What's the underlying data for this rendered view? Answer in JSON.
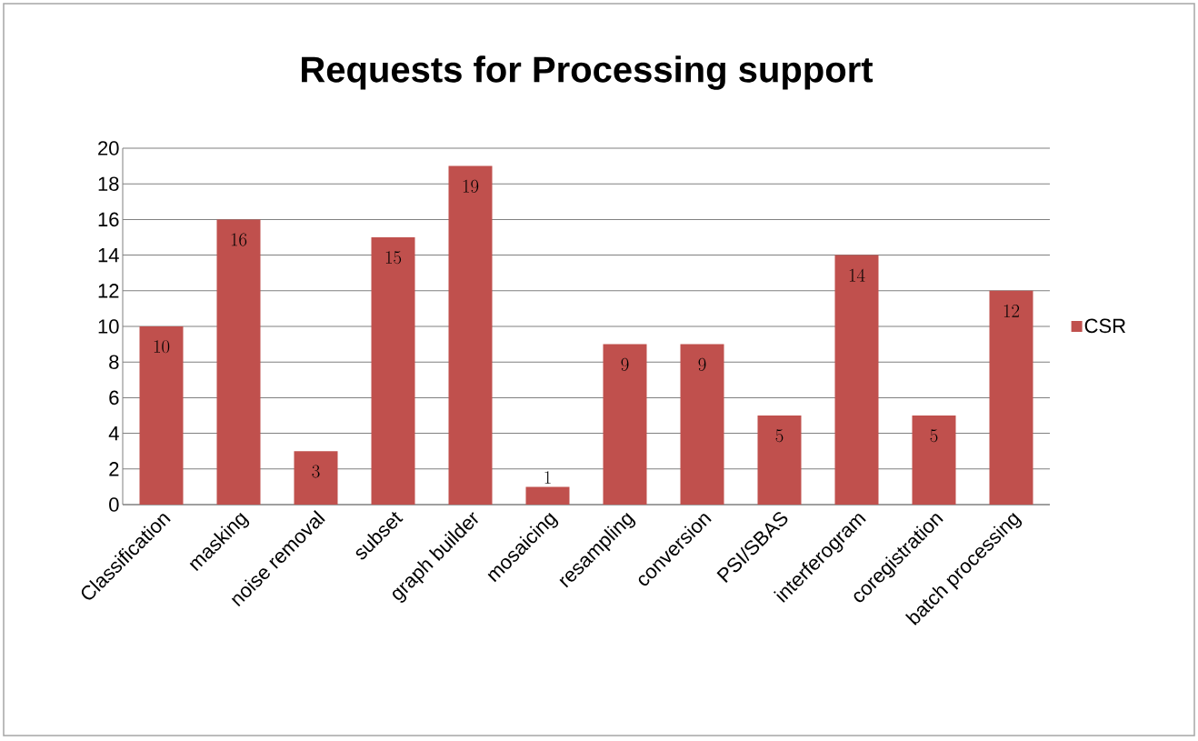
{
  "chart_data": {
    "type": "bar",
    "title": "Requests for Processing support",
    "categories": [
      "Classification",
      "masking",
      "noise removal",
      "subset",
      "graph builder",
      "mosaicing",
      "resampling",
      "conversion",
      "PSI/SBAS",
      "interferogram",
      "coregistration",
      "batch processing"
    ],
    "series": [
      {
        "name": "CSR",
        "color": "#c0504d",
        "values": [
          10,
          16,
          3,
          15,
          19,
          1,
          9,
          9,
          5,
          14,
          5,
          12
        ]
      }
    ],
    "ylim": [
      0,
      20
    ],
    "yticks": [
      0,
      2,
      4,
      6,
      8,
      10,
      12,
      14,
      16,
      18,
      20
    ],
    "grid": "y",
    "legend": "right",
    "data_labels": true
  }
}
